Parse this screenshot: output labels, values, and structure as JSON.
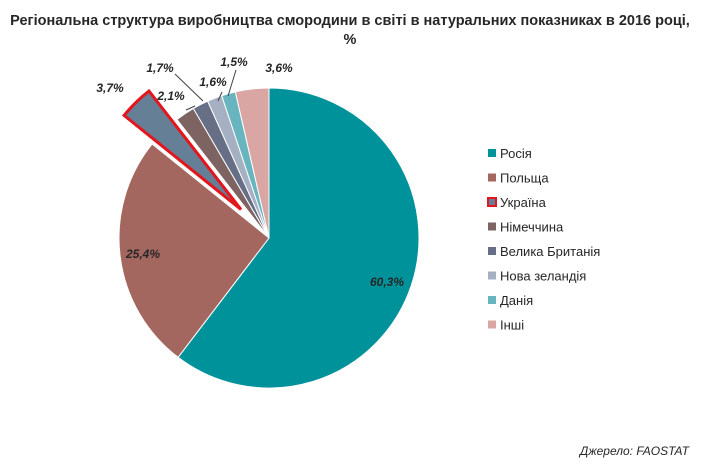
{
  "chart_data": {
    "type": "pie",
    "title": "Регіональна структура виробництва смородини в світі в натуральних показниках в 2016 році, %",
    "categories": [
      "Росія",
      "Польща",
      "Україна",
      "Німеччина",
      "Велика Британія",
      "Нова зеландія",
      "Данія",
      "Інші"
    ],
    "values": [
      60.3,
      25.4,
      3.7,
      2.1,
      1.7,
      1.6,
      1.5,
      3.6
    ],
    "labels": [
      "60,3%",
      "25,4%",
      "3,7%",
      "2,1%",
      "1,7%",
      "1,6%",
      "1,5%",
      "3,6%"
    ],
    "colors": [
      "#00929B",
      "#A4675F",
      "#657F96",
      "#7E6363",
      "#666F85",
      "#A6B0C3",
      "#69B5BF",
      "#D9A6A3"
    ],
    "highlight_color": "#E3161D",
    "exploded_category": "Україна",
    "legend_position": "right"
  },
  "source": "Джерело: FAOSTAT"
}
